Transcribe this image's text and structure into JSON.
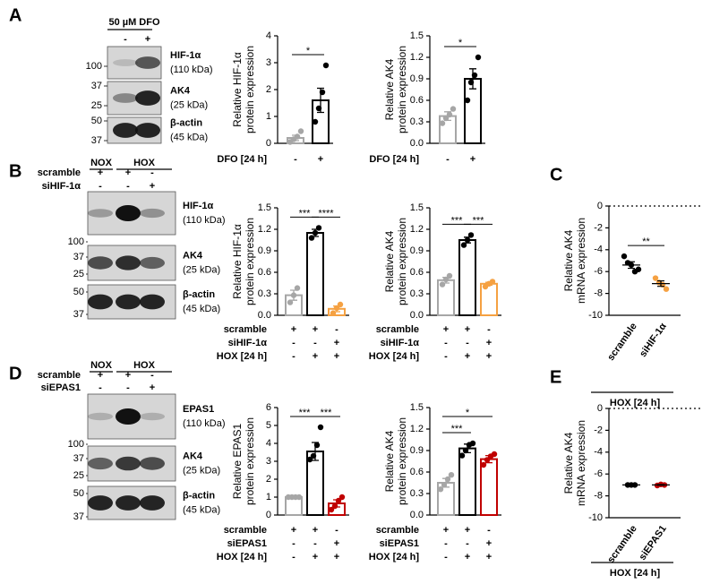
{
  "panel_labels": [
    "A",
    "B",
    "C",
    "D",
    "E"
  ],
  "blots": [
    {
      "header": "50 µM DFO",
      "columns": [
        "-",
        "+"
      ],
      "bands": [
        {
          "name": "HIF-1α",
          "kda": "(110 kDa)"
        },
        {
          "name": "AK4",
          "kda": "(25 kDa)"
        },
        {
          "name": "β-actin",
          "kda": "(45 kDa)"
        }
      ],
      "markers": [
        100,
        37,
        25,
        50,
        37
      ]
    },
    {
      "groups": [
        "NOX",
        "HOX"
      ],
      "rows": [
        {
          "label": "scramble",
          "signs": [
            "+",
            "+",
            "-"
          ]
        },
        {
          "label": "siHIF-1α",
          "signs": [
            "-",
            "-",
            "+"
          ]
        }
      ],
      "bands": [
        {
          "name": "HIF-1α",
          "kda": "(110 kDa)"
        },
        {
          "name": "AK4",
          "kda": "(25 kDa)"
        },
        {
          "name": "β-actin",
          "kda": "(45 kDa)"
        }
      ],
      "markers": [
        100,
        37,
        25,
        50,
        37
      ]
    },
    {
      "groups": [
        "NOX",
        "HOX"
      ],
      "rows": [
        {
          "label": "scramble",
          "signs": [
            "+",
            "+",
            "-"
          ]
        },
        {
          "label": "siEPAS1",
          "signs": [
            "-",
            "-",
            "+"
          ]
        }
      ],
      "bands": [
        {
          "name": "EPAS1",
          "kda": "(110 kDa)"
        },
        {
          "name": "AK4",
          "kda": "(25 kDa)"
        },
        {
          "name": "β-actin",
          "kda": "(45 kDa)"
        }
      ],
      "markers": [
        100,
        37,
        25,
        50,
        37
      ]
    }
  ],
  "chart_data": [
    {
      "type": "bar",
      "y_label": [
        "Relative HIF-1α",
        "protein expression"
      ],
      "ylim": [
        0,
        4
      ],
      "yticks": [
        0,
        1,
        2,
        3,
        4
      ],
      "conditions": [
        {
          "label": "DFO [24 h]",
          "signs": [
            "-",
            "+"
          ]
        }
      ],
      "values": [
        0.2,
        1.6
      ],
      "errors": [
        0.1,
        0.45
      ],
      "colors": [
        "#a6a6a6",
        "#000000"
      ],
      "points": [
        [
          0.05,
          0.15,
          0.25,
          0.45
        ],
        [
          0.8,
          1.3,
          1.9,
          2.9
        ]
      ],
      "significance": [
        {
          "from": 0,
          "to": 1,
          "label": "*"
        }
      ]
    },
    {
      "type": "bar",
      "y_label": [
        "Relative AK4",
        "protein expression"
      ],
      "ylim": [
        0,
        1.5
      ],
      "yticks": [
        {
          "value": 0,
          "label": "0.0"
        },
        0.3,
        0.6,
        0.9,
        1.2,
        1.5
      ],
      "conditions": [
        {
          "label": "DFO [24 h]",
          "signs": [
            "-",
            "+"
          ]
        }
      ],
      "values": [
        0.38,
        0.9
      ],
      "errors": [
        0.06,
        0.14
      ],
      "colors": [
        "#a6a6a6",
        "#000000"
      ],
      "points": [
        [
          0.28,
          0.35,
          0.4,
          0.48
        ],
        [
          0.6,
          0.85,
          0.95,
          1.2
        ]
      ],
      "significance": [
        {
          "from": 0,
          "to": 1,
          "label": "*"
        }
      ]
    },
    {
      "type": "bar",
      "y_label": [
        "Relative HIF-1α",
        "protein expression"
      ],
      "ylim": [
        0,
        1.5
      ],
      "yticks": [
        {
          "value": 0,
          "label": "0.0"
        },
        0.3,
        0.6,
        0.9,
        1.2,
        1.5
      ],
      "conditions": [
        {
          "label": "scramble",
          "signs": [
            "+",
            "+",
            "-"
          ]
        },
        {
          "label": "siHIF-1α",
          "signs": [
            "-",
            "-",
            "+"
          ]
        },
        {
          "label": "HOX [24 h]",
          "signs": [
            "-",
            "+",
            "+"
          ]
        }
      ],
      "values": [
        0.28,
        1.15,
        0.09
      ],
      "errors": [
        0.07,
        0.05,
        0.04
      ],
      "colors": [
        "#a6a6a6",
        "#000000",
        "#f5a142"
      ],
      "points": [
        [
          0.18,
          0.28,
          0.38
        ],
        [
          1.08,
          1.15,
          1.22
        ],
        [
          0.03,
          0.1,
          0.15
        ]
      ],
      "significance": [
        {
          "from": 0,
          "to": 1,
          "label": "***"
        },
        {
          "from": 1,
          "to": 2,
          "label": "****"
        }
      ]
    },
    {
      "type": "bar",
      "y_label": [
        "Relative AK4",
        "protein expression"
      ],
      "ylim": [
        0,
        1.5
      ],
      "yticks": [
        {
          "value": 0,
          "label": "0.0"
        },
        0.3,
        0.6,
        0.9,
        1.2,
        1.5
      ],
      "conditions": [
        {
          "label": "scramble",
          "signs": [
            "+",
            "+",
            "-"
          ]
        },
        {
          "label": "siHIF-1α",
          "signs": [
            "-",
            "-",
            "+"
          ]
        },
        {
          "label": "HOX [24 h]",
          "signs": [
            "-",
            "+",
            "+"
          ]
        }
      ],
      "values": [
        0.49,
        1.05,
        0.44
      ],
      "errors": [
        0.04,
        0.04,
        0.02
      ],
      "colors": [
        "#a6a6a6",
        "#000000",
        "#f5a142"
      ],
      "points": [
        [
          0.43,
          0.5,
          0.55
        ],
        [
          0.98,
          1.05,
          1.12
        ],
        [
          0.4,
          0.44,
          0.47
        ]
      ],
      "significance": [
        {
          "from": 0,
          "to": 1,
          "label": "***"
        },
        {
          "from": 1,
          "to": 2,
          "label": "***"
        }
      ]
    },
    {
      "type": "scatter",
      "y_label": [
        "Relative AK4",
        "mRNA expression"
      ],
      "ylim": [
        -10,
        0
      ],
      "yticks": [
        0,
        -2,
        -4,
        -6,
        -8,
        -10
      ],
      "reference_line": 0,
      "categories": [
        "scramble",
        "siHIF-1α"
      ],
      "group_label": "HOX [24 h]",
      "values": [
        -5.4,
        -7.1
      ],
      "errors": [
        0.3,
        0.25
      ],
      "colors": [
        "#000000",
        "#f5a142"
      ],
      "points": [
        [
          -4.6,
          -5.2,
          -5.4,
          -6.0,
          -5.8
        ],
        [
          -6.6,
          -7.0,
          -7.2,
          -7.6
        ]
      ],
      "significance": [
        {
          "from": 0,
          "to": 1,
          "label": "**"
        }
      ]
    },
    {
      "type": "bar",
      "y_label": [
        "Relative EPAS1",
        "protein expression"
      ],
      "ylim": [
        0,
        6
      ],
      "yticks": [
        0,
        1,
        2,
        3,
        4,
        5,
        6
      ],
      "conditions": [
        {
          "label": "scramble",
          "signs": [
            "+",
            "+",
            "-"
          ]
        },
        {
          "label": "siEPAS1",
          "signs": [
            "-",
            "-",
            "+"
          ]
        },
        {
          "label": "HOX [24 h]",
          "signs": [
            "-",
            "+",
            "+"
          ]
        }
      ],
      "values": [
        1.0,
        3.55,
        0.65
      ],
      "errors": [
        0,
        0.5,
        0.2
      ],
      "colors": [
        "#a6a6a6",
        "#000000",
        "#c00000"
      ],
      "points": [
        [
          1,
          1,
          1,
          1
        ],
        [
          3.1,
          3.3,
          3.9,
          4.9
        ],
        [
          0.3,
          0.5,
          0.8,
          1.0
        ]
      ],
      "significance": [
        {
          "from": 0,
          "to": 1,
          "label": "***"
        },
        {
          "from": 1,
          "to": 2,
          "label": "***"
        }
      ]
    },
    {
      "type": "bar",
      "y_label": [
        "Relative AK4",
        "protein expression"
      ],
      "ylim": [
        0,
        1.5
      ],
      "yticks": [
        {
          "value": 0,
          "label": "0.0"
        },
        0.3,
        0.6,
        0.9,
        1.2,
        1.5
      ],
      "conditions": [
        {
          "label": "scramble",
          "signs": [
            "+",
            "+",
            "-"
          ]
        },
        {
          "label": "siEPAS1",
          "signs": [
            "-",
            "-",
            "+"
          ]
        },
        {
          "label": "HOX [24 h]",
          "signs": [
            "-",
            "+",
            "+"
          ]
        }
      ],
      "values": [
        0.45,
        0.93,
        0.78
      ],
      "errors": [
        0.06,
        0.06,
        0.05
      ],
      "colors": [
        "#a6a6a6",
        "#000000",
        "#c00000"
      ],
      "points": [
        [
          0.36,
          0.42,
          0.5,
          0.56
        ],
        [
          0.83,
          0.9,
          0.98,
          1.0
        ],
        [
          0.7,
          0.77,
          0.82,
          0.85
        ]
      ],
      "significance": [
        {
          "from": 0,
          "to": 1,
          "label": "***"
        },
        {
          "from": 0,
          "to": 2,
          "label": "*"
        }
      ]
    },
    {
      "type": "scatter",
      "y_label": [
        "Relative AK4",
        "mRNA expression"
      ],
      "ylim": [
        -10,
        0
      ],
      "yticks": [
        0,
        -2,
        -4,
        -6,
        -8,
        -10
      ],
      "reference_line": 0,
      "categories": [
        "scramble",
        "siEPAS1"
      ],
      "group_label": "HOX [24 h]",
      "values": [
        -7.0,
        -7.0
      ],
      "errors": [
        0.02,
        0.03
      ],
      "colors": [
        "#000000",
        "#c00000"
      ],
      "points": [
        [
          -7.0,
          -7.0,
          -7.0
        ],
        [
          -7.05,
          -6.95,
          -7.0
        ]
      ],
      "significance": []
    }
  ]
}
